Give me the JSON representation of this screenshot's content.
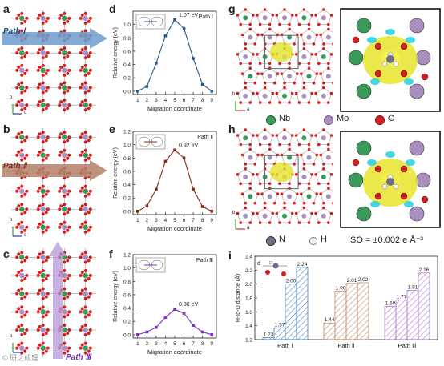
{
  "panels": {
    "a": {
      "letter": "a",
      "path_label": "Path Ⅰ",
      "arrow_color": "#6e9ccc"
    },
    "b": {
      "letter": "b",
      "path_label": "Path Ⅱ",
      "arrow_color": "#b5806a"
    },
    "c": {
      "letter": "c",
      "path_label": "Path Ⅲ",
      "arrow_color": "#b497d6"
    },
    "g": {
      "letter": "g"
    },
    "h": {
      "letter": "h"
    },
    "axes_a": {
      "b": "b",
      "c": "c"
    },
    "axes_b": {
      "b": "b",
      "c": "c"
    },
    "axes_c": {
      "b": "b",
      "c": "c"
    },
    "axes_g": {
      "b": "b",
      "a": "a"
    },
    "axes_h": {
      "b": "b",
      "a": "a"
    }
  },
  "legend": {
    "nb": {
      "label": "Nb",
      "color": "#3a9a5a"
    },
    "mo": {
      "label": "Mo",
      "color": "#a98fc0"
    },
    "o": {
      "label": "O",
      "color": "#d02020"
    },
    "n": {
      "label": "N",
      "color": "#6c6e8a"
    },
    "h": {
      "label": "H",
      "color": "#f4f4f4"
    },
    "iso": "ISO = ±0.002 e Å⁻³"
  },
  "watermark": "© 研之成理",
  "chart_data": [
    {
      "id": "d",
      "type": "line",
      "panel_letter": "d",
      "title": "Path Ⅰ",
      "annotation": "1.07 eV",
      "xlabel": "Migration coordinate",
      "ylabel": "Relative energy (eV)",
      "x": [
        1,
        2,
        3,
        4,
        5,
        6,
        7,
        8,
        9
      ],
      "y": [
        0.0,
        0.07,
        0.42,
        0.83,
        1.07,
        0.94,
        0.49,
        0.1,
        0.0
      ],
      "xlim": [
        0.5,
        9.5
      ],
      "ylim": [
        -0.05,
        1.2
      ],
      "yticks": [
        "0.0",
        "0.2",
        "0.4",
        "0.6",
        "0.8",
        "1.0"
      ],
      "xticks": [
        "1",
        "2",
        "3",
        "4",
        "5",
        "6",
        "7",
        "8",
        "9"
      ],
      "color": "#2b5b8a"
    },
    {
      "id": "e",
      "type": "line",
      "panel_letter": "e",
      "title": "Path Ⅱ",
      "annotation": "0.92 eV",
      "xlabel": "Migration coordinate",
      "ylabel": "Relative energy (eV)",
      "x": [
        1,
        2,
        3,
        4,
        5,
        6,
        7,
        8,
        9
      ],
      "y": [
        0.0,
        0.08,
        0.33,
        0.75,
        0.92,
        0.8,
        0.33,
        0.07,
        0.0
      ],
      "xlim": [
        0.5,
        9.5
      ],
      "ylim": [
        -0.05,
        1.2
      ],
      "yticks": [
        "0.0",
        "0.2",
        "0.4",
        "0.6",
        "0.8",
        "1.0",
        "1.2"
      ],
      "xticks": [
        "1",
        "2",
        "3",
        "4",
        "5",
        "6",
        "7",
        "8",
        "9"
      ],
      "color": "#8a2a1a"
    },
    {
      "id": "f",
      "type": "line",
      "panel_letter": "f",
      "title": "Path Ⅲ",
      "annotation": "0.38 eV",
      "xlabel": "Migration coordinate",
      "ylabel": "Relative energy (eV)",
      "x": [
        1,
        2,
        3,
        4,
        5,
        6,
        7,
        8,
        9
      ],
      "y": [
        0.0,
        0.04,
        0.11,
        0.26,
        0.38,
        0.32,
        0.14,
        0.04,
        0.0
      ],
      "xlim": [
        0.5,
        9.5
      ],
      "ylim": [
        -0.05,
        1.2
      ],
      "yticks": [
        "0.0",
        "0.2",
        "0.4",
        "0.6",
        "0.8",
        "1.0",
        "1.2"
      ],
      "xticks": [
        "1",
        "2",
        "3",
        "4",
        "5",
        "6",
        "7",
        "8",
        "9"
      ],
      "color": "#7a32c0"
    },
    {
      "id": "i",
      "type": "bar",
      "panel_letter": "i",
      "ylabel": "H-to-O distance (Å)",
      "inset_label": "d",
      "ylim": [
        1.2,
        2.4
      ],
      "yticks": [
        "1.2",
        "1.4",
        "1.6",
        "1.8",
        "2.0",
        "2.2",
        "2.4"
      ],
      "groups": [
        {
          "label": "Path Ⅰ",
          "values": [
            1.23,
            1.37,
            2.0,
            2.24
          ],
          "value_labels": [
            "1.23",
            "1.37",
            "2.00",
            "2.24"
          ],
          "color": "#4a86c0"
        },
        {
          "label": "Path Ⅱ",
          "values": [
            1.44,
            1.9,
            2.01,
            2.02
          ],
          "value_labels": [
            "1.44",
            "1.90",
            "2.01",
            "2.02"
          ],
          "color": "#c08a6a"
        },
        {
          "label": "Path Ⅲ",
          "values": [
            1.68,
            1.77,
            1.91,
            2.16
          ],
          "value_labels": [
            "1.68",
            "1.77",
            "1.91",
            "2.16"
          ],
          "color": "#b07ad0"
        }
      ]
    }
  ]
}
